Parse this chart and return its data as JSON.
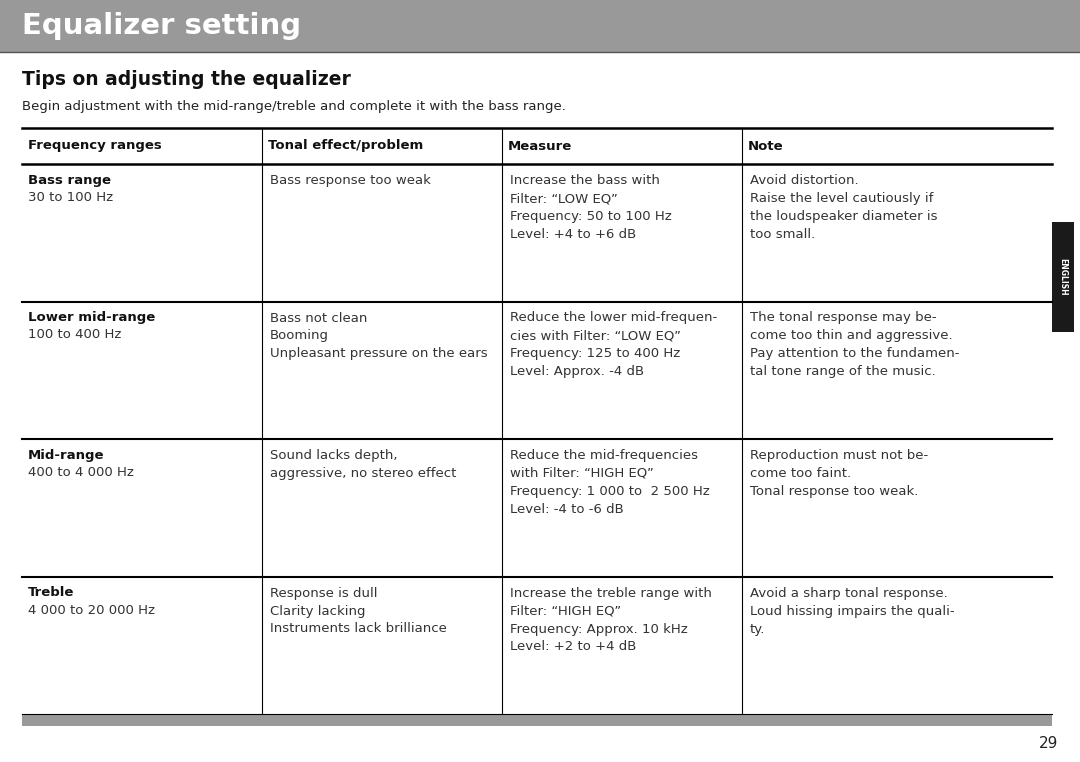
{
  "title": "Equalizer setting",
  "title_bg": "#999999",
  "title_color": "#ffffff",
  "subtitle": "Tips on adjusting the equalizer",
  "intro": "Begin adjustment with the mid-range/treble and complete it with the bass range.",
  "headers": [
    "Frequency ranges",
    "Tonal effect/problem",
    "Measure",
    "Note"
  ],
  "rows": [
    {
      "freq_bold": "Bass range",
      "freq_normal": "30 to 100 Hz",
      "tonal": "Bass response too weak",
      "measure": "Increase the bass with\nFilter: “LOW EQ”\nFrequency: 50 to 100 Hz\nLevel: +4 to +6 dB",
      "note": "Avoid distortion.\nRaise the level cautiously if\nthe loudspeaker diameter is\ntoo small."
    },
    {
      "freq_bold": "Lower mid-range",
      "freq_normal": "100 to 400 Hz",
      "tonal": "Bass not clean\nBooming\nUnpleasant pressure on the ears",
      "measure": "Reduce the lower mid-frequen-\ncies with Filter: “LOW EQ”\nFrequency: 125 to 400 Hz\nLevel: Approx. -4 dB",
      "note": "The tonal response may be-\ncome too thin and aggressive.\nPay attention to the fundamen-\ntal tone range of the music."
    },
    {
      "freq_bold": "Mid-range",
      "freq_normal": "400 to 4 000 Hz",
      "tonal": "Sound lacks depth,\naggressive, no stereo effect",
      "measure": "Reduce the mid-frequencies\nwith Filter: “HIGH EQ”\nFrequency: 1 000 to  2 500 Hz\nLevel: -4 to -6 dB",
      "note": "Reproduction must not be-\ncome too faint.\nTonal response too weak."
    },
    {
      "freq_bold": "Treble",
      "freq_normal": "4 000 to 20 000 Hz",
      "tonal": "Response is dull\nClarity lacking\nInstruments lack brilliance",
      "measure": "Increase the treble range with\nFilter: “HIGH EQ”\nFrequency: Approx. 10 kHz\nLevel: +2 to +4 dB",
      "note": "Avoid a sharp tonal response.\nLoud hissing impairs the quali-\nty."
    }
  ],
  "footer_bar_color": "#999999",
  "page_number": "29",
  "bg_color": "#ffffff",
  "english_sidebar": "ENGLISH"
}
